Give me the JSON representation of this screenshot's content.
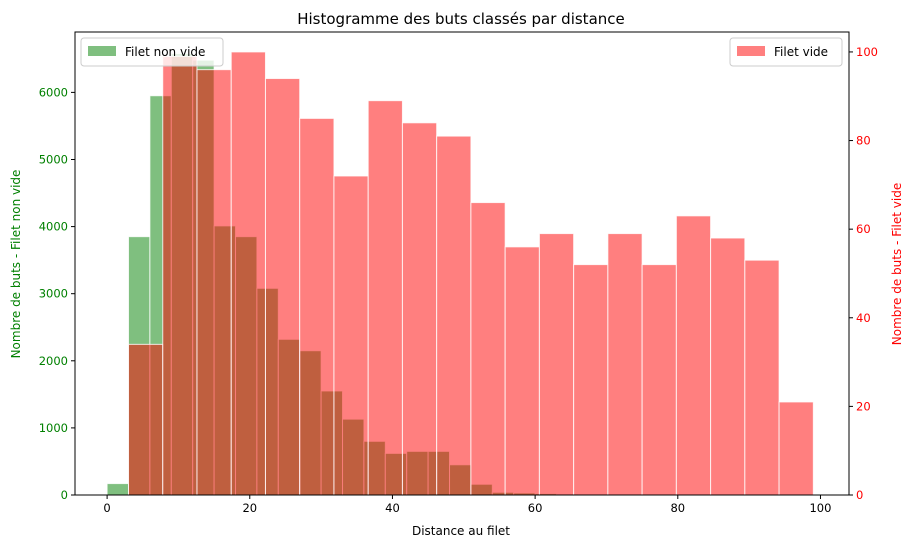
{
  "chart_data": {
    "type": "bar",
    "title": "Histogramme des buts classés par distance",
    "xlabel": "Distance au filet",
    "xlim": [
      -4.5,
      104
    ],
    "xticks": [
      0,
      20,
      40,
      60,
      80,
      100
    ],
    "axes": {
      "left": {
        "label": "Nombre de buts - Filet non vide",
        "color": "#008000",
        "ylim": [
          0,
          6900
        ],
        "ticks": [
          0,
          1000,
          2000,
          3000,
          4000,
          5000,
          6000
        ]
      },
      "right": {
        "label": "Nombre de buts - Filet vide",
        "color": "#ff0000",
        "ylim": [
          0,
          104.5
        ],
        "ticks": [
          0,
          20,
          40,
          60,
          80,
          100
        ]
      }
    },
    "series": [
      {
        "name": "Filet non vide",
        "axis": "left",
        "color": "#008000",
        "alpha": 0.5,
        "legend_position": "upper left",
        "bin_edges": [
          0,
          3,
          6,
          9,
          12,
          15,
          18,
          21,
          24,
          27,
          30,
          33,
          36,
          39,
          42,
          45,
          48,
          51,
          54,
          57,
          60,
          63,
          66,
          69,
          72,
          75,
          78
        ],
        "counts": [
          170,
          3850,
          5950,
          6580,
          6480,
          4010,
          3850,
          3080,
          2320,
          2150,
          1550,
          1130,
          800,
          620,
          650,
          650,
          450,
          160,
          40,
          30,
          20,
          10,
          5,
          5,
          3,
          2
        ]
      },
      {
        "name": "Filet vide",
        "axis": "right",
        "color": "#ff0000",
        "alpha": 0.5,
        "legend_position": "upper right",
        "bin_edges": [
          3,
          7.8,
          12.6,
          17.4,
          22.2,
          27,
          31.8,
          36.6,
          41.4,
          46.2,
          51,
          55.8,
          60.6,
          65.4,
          70.2,
          75,
          79.8,
          84.6,
          89.4,
          94.2,
          99
        ],
        "counts": [
          34,
          99,
          96,
          100,
          94,
          85,
          72,
          89,
          84,
          81,
          66,
          56,
          59,
          52,
          59,
          52,
          63,
          58,
          53,
          21
        ]
      }
    ]
  }
}
